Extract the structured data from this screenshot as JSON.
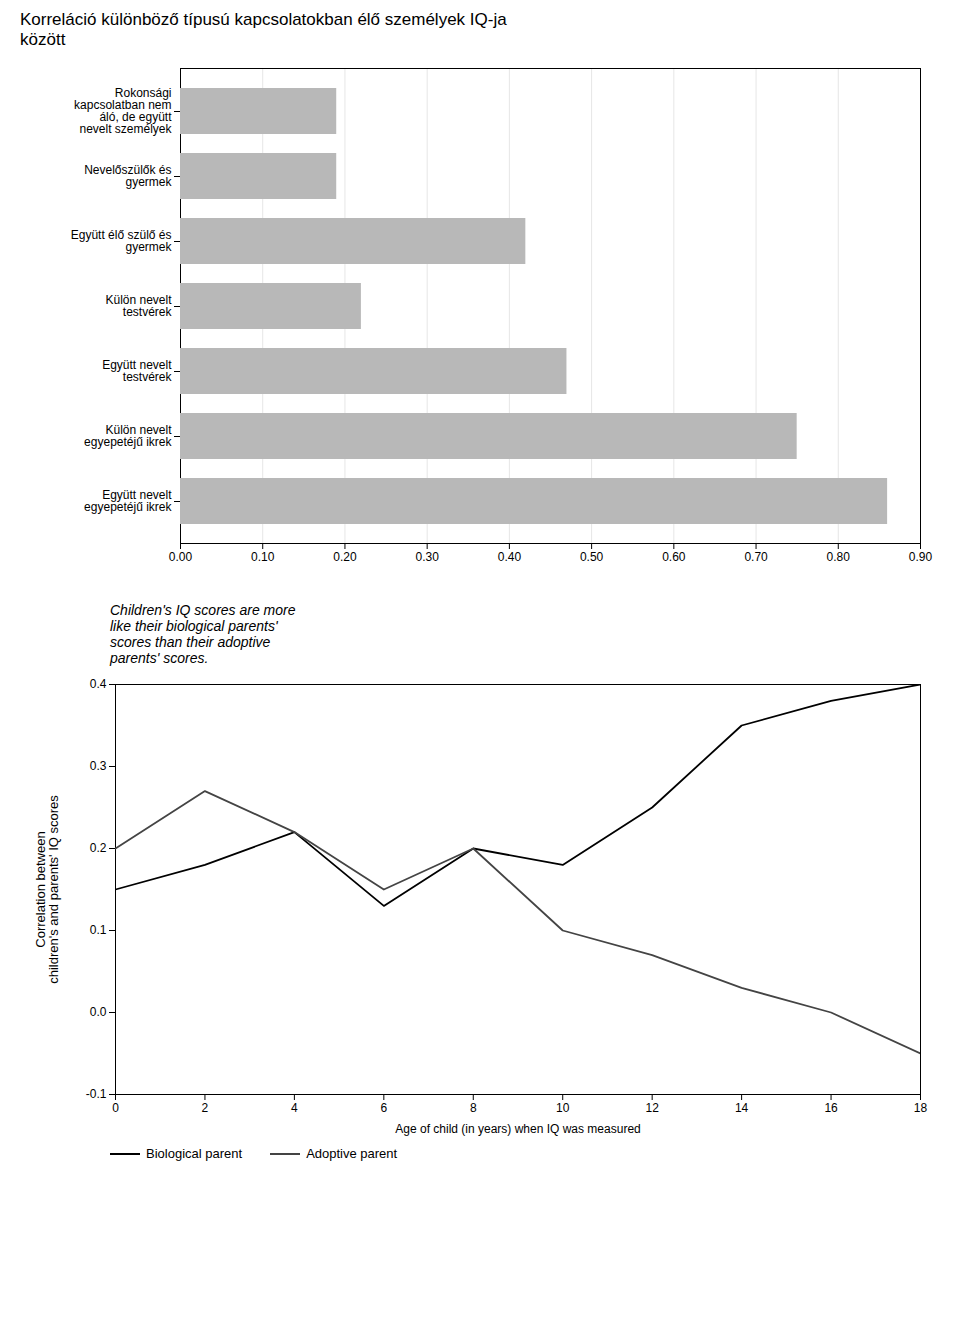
{
  "chart_data": [
    {
      "type": "bar",
      "orientation": "horizontal",
      "title": "Korreláció különböző típusú kapcsolatokban élő személyek IQ-ja\nközött",
      "categories": [
        "Rokonsági\nkapcsolatban nem\náló, de együtt\nnevelt személyek",
        "Nevelőszülők és\ngyermek",
        "Együtt élő szülő és\ngyermek",
        "Külön nevelt\ntestvérek",
        "Együtt nevelt\ntestvérek",
        "Külön nevelt\negyepetéjű ikrek",
        "Együtt nevelt\negyepetéjű ikrek"
      ],
      "values": [
        0.19,
        0.19,
        0.42,
        0.22,
        0.47,
        0.75,
        0.86
      ],
      "color": "#b8b8b8",
      "xlim": [
        0,
        0.9
      ],
      "xticks": [
        {
          "value": 0.0,
          "label": "0.00"
        },
        {
          "value": 0.1,
          "label": "0.10"
        },
        {
          "value": 0.2,
          "label": "0.20"
        },
        {
          "value": 0.3,
          "label": "0.30"
        },
        {
          "value": 0.4,
          "label": "0.40"
        },
        {
          "value": 0.5,
          "label": "0.50"
        },
        {
          "value": 0.6,
          "label": "0.60"
        },
        {
          "value": 0.7,
          "label": "0.70"
        },
        {
          "value": 0.8,
          "label": "0.80"
        },
        {
          "value": 0.9,
          "label": "0.90"
        }
      ],
      "grid": true
    },
    {
      "type": "line",
      "annotation": "Children's IQ scores are more\nlike their biological parents'\nscores than their adoptive\nparents' scores.",
      "xlabel": "Age of child (in years) when IQ was measured",
      "ylabel": "Correlation between\nchildren's and parents' IQ scores",
      "x": [
        0,
        2,
        4,
        6,
        8,
        10,
        12,
        14,
        16,
        18
      ],
      "series": [
        {
          "name": "Biological parent",
          "color": "#000000",
          "values": [
            0.15,
            0.18,
            0.22,
            0.13,
            0.2,
            0.18,
            0.25,
            0.35,
            0.38,
            0.4
          ]
        },
        {
          "name": "Adoptive parent",
          "color": "#444444",
          "values": [
            0.2,
            0.27,
            0.22,
            0.15,
            0.2,
            0.1,
            0.07,
            0.03,
            0.0,
            -0.05
          ]
        }
      ],
      "xlim": [
        0,
        18
      ],
      "xticks": [
        0,
        2,
        4,
        6,
        8,
        10,
        12,
        14,
        16,
        18
      ],
      "ylim": [
        -0.1,
        0.4
      ],
      "yticks": [
        -0.1,
        {
          "value": 0,
          "label": "0.0"
        },
        0.1,
        0.2,
        0.3,
        0.4
      ],
      "grid": false,
      "legend": "bottom"
    }
  ]
}
